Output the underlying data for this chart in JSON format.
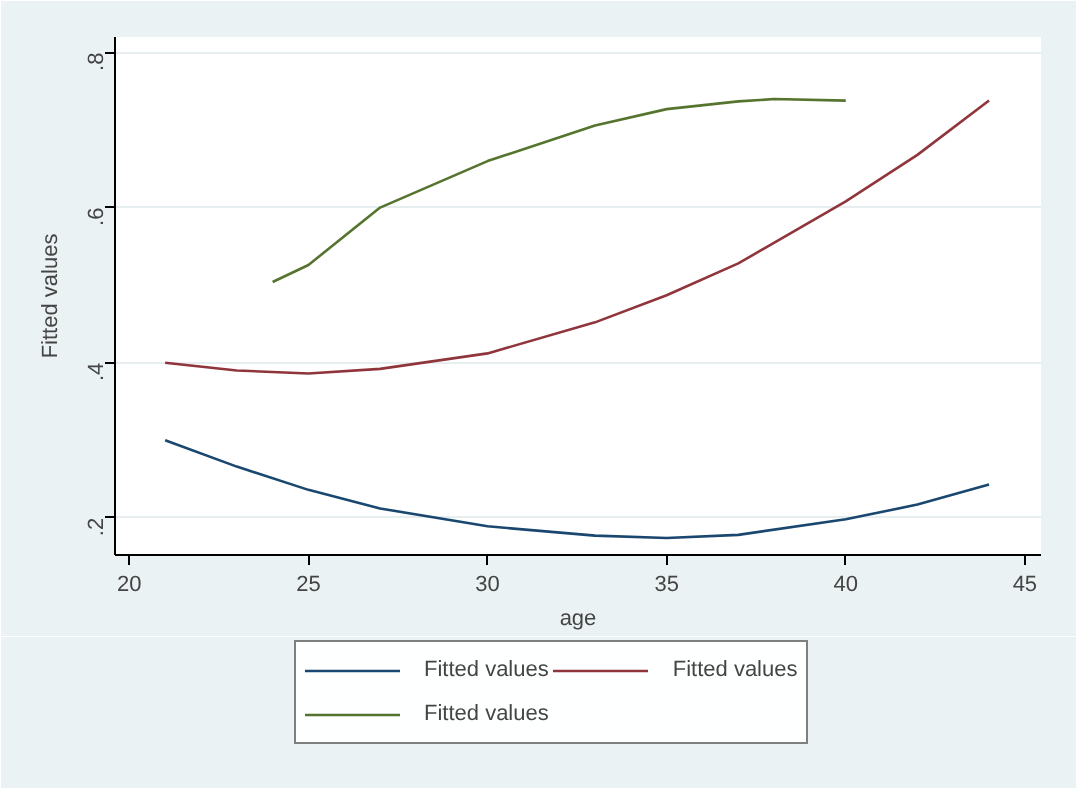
{
  "chart_data": {
    "type": "line",
    "xlabel": "age",
    "ylabel": "Fitted values",
    "xlim": [
      19.6,
      45.45
    ],
    "ylim": [
      0.152,
      0.82
    ],
    "xticks": [
      20,
      25,
      30,
      35,
      40,
      45
    ],
    "yticks": [
      {
        "value": 0.2,
        "label": ".2"
      },
      {
        "value": 0.4,
        "label": ".4"
      },
      {
        "value": 0.6,
        "label": ".6"
      },
      {
        "value": 0.8,
        "label": ".8"
      }
    ],
    "grid": "y",
    "legend": "bottom",
    "marker": "none",
    "line_style": "solid",
    "series": [
      {
        "name": "Fitted values",
        "color": "#1a476f",
        "x": [
          21,
          23,
          25,
          27,
          30,
          33,
          35,
          37,
          40,
          42,
          44
        ],
        "values": [
          0.3,
          0.266,
          0.236,
          0.212,
          0.189,
          0.177,
          0.174,
          0.178,
          0.198,
          0.217,
          0.243
        ]
      },
      {
        "name": "Fitted values",
        "color": "#90353b",
        "x": [
          21,
          23,
          25,
          27,
          30,
          33,
          35,
          37,
          40,
          42,
          44
        ],
        "values": [
          0.4,
          0.39,
          0.386,
          0.392,
          0.412,
          0.452,
          0.487,
          0.528,
          0.608,
          0.668,
          0.738
        ]
      },
      {
        "name": "Fitted values",
        "color": "#55752f",
        "x": [
          24,
          25,
          27,
          30,
          33,
          35,
          37,
          38,
          40
        ],
        "values": [
          0.504,
          0.526,
          0.6,
          0.66,
          0.706,
          0.727,
          0.737,
          0.74,
          0.738
        ]
      }
    ]
  }
}
